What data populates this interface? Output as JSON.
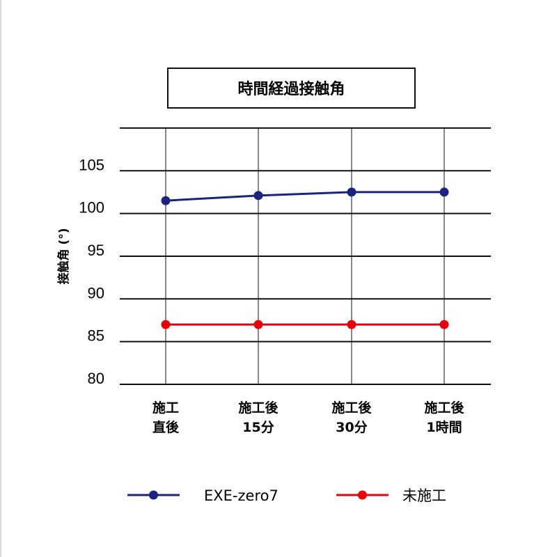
{
  "chart_data": {
    "type": "line",
    "title": "時間経過接触角",
    "ylabel": "接触角 (°)",
    "xlabel": "",
    "categories": [
      [
        "施工",
        "直後"
      ],
      [
        "施工後",
        "15分"
      ],
      [
        "施工後",
        "30分"
      ],
      [
        "施工後",
        "1時間"
      ]
    ],
    "ylim": [
      80,
      110
    ],
    "yticks": [
      80,
      85,
      90,
      95,
      100,
      105
    ],
    "grid": true,
    "legend_position": "bottom",
    "series": [
      {
        "name": "EXE-zero7",
        "values": [
          101.5,
          102.1,
          102.5,
          102.5
        ],
        "color": "#1a237e"
      },
      {
        "name": "未施工",
        "values": [
          87.0,
          87.0,
          87.0,
          87.0
        ],
        "color": "#e8000b"
      }
    ]
  }
}
